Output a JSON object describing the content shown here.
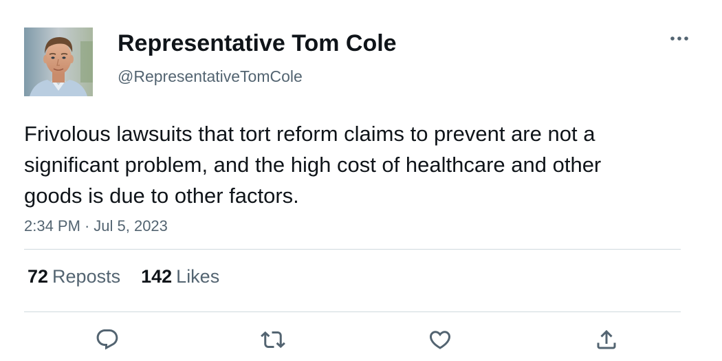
{
  "author": {
    "display_name": "Representative Tom Cole",
    "handle": "@RepresentativeTomCole",
    "avatar_icon": "profile-photo"
  },
  "tweet": {
    "text": "Frivolous lawsuits that tort reform claims to prevent are not a significant problem, and the high cost of healthcare and other goods is due to other factors.",
    "time": "2:34 PM",
    "separator": "·",
    "date": "Jul 5, 2023"
  },
  "stats": {
    "reposts_count": "72",
    "reposts_label": "Reposts",
    "likes_count": "142",
    "likes_label": "Likes"
  },
  "actions": {
    "reply_icon": "reply-icon",
    "repost_icon": "repost-icon",
    "like_icon": "heart-icon",
    "share_icon": "share-icon",
    "more_icon": "more-icon"
  },
  "colors": {
    "text_primary": "#0f1419",
    "text_secondary": "#536471",
    "divider": "#cfd9de",
    "background": "#ffffff"
  }
}
